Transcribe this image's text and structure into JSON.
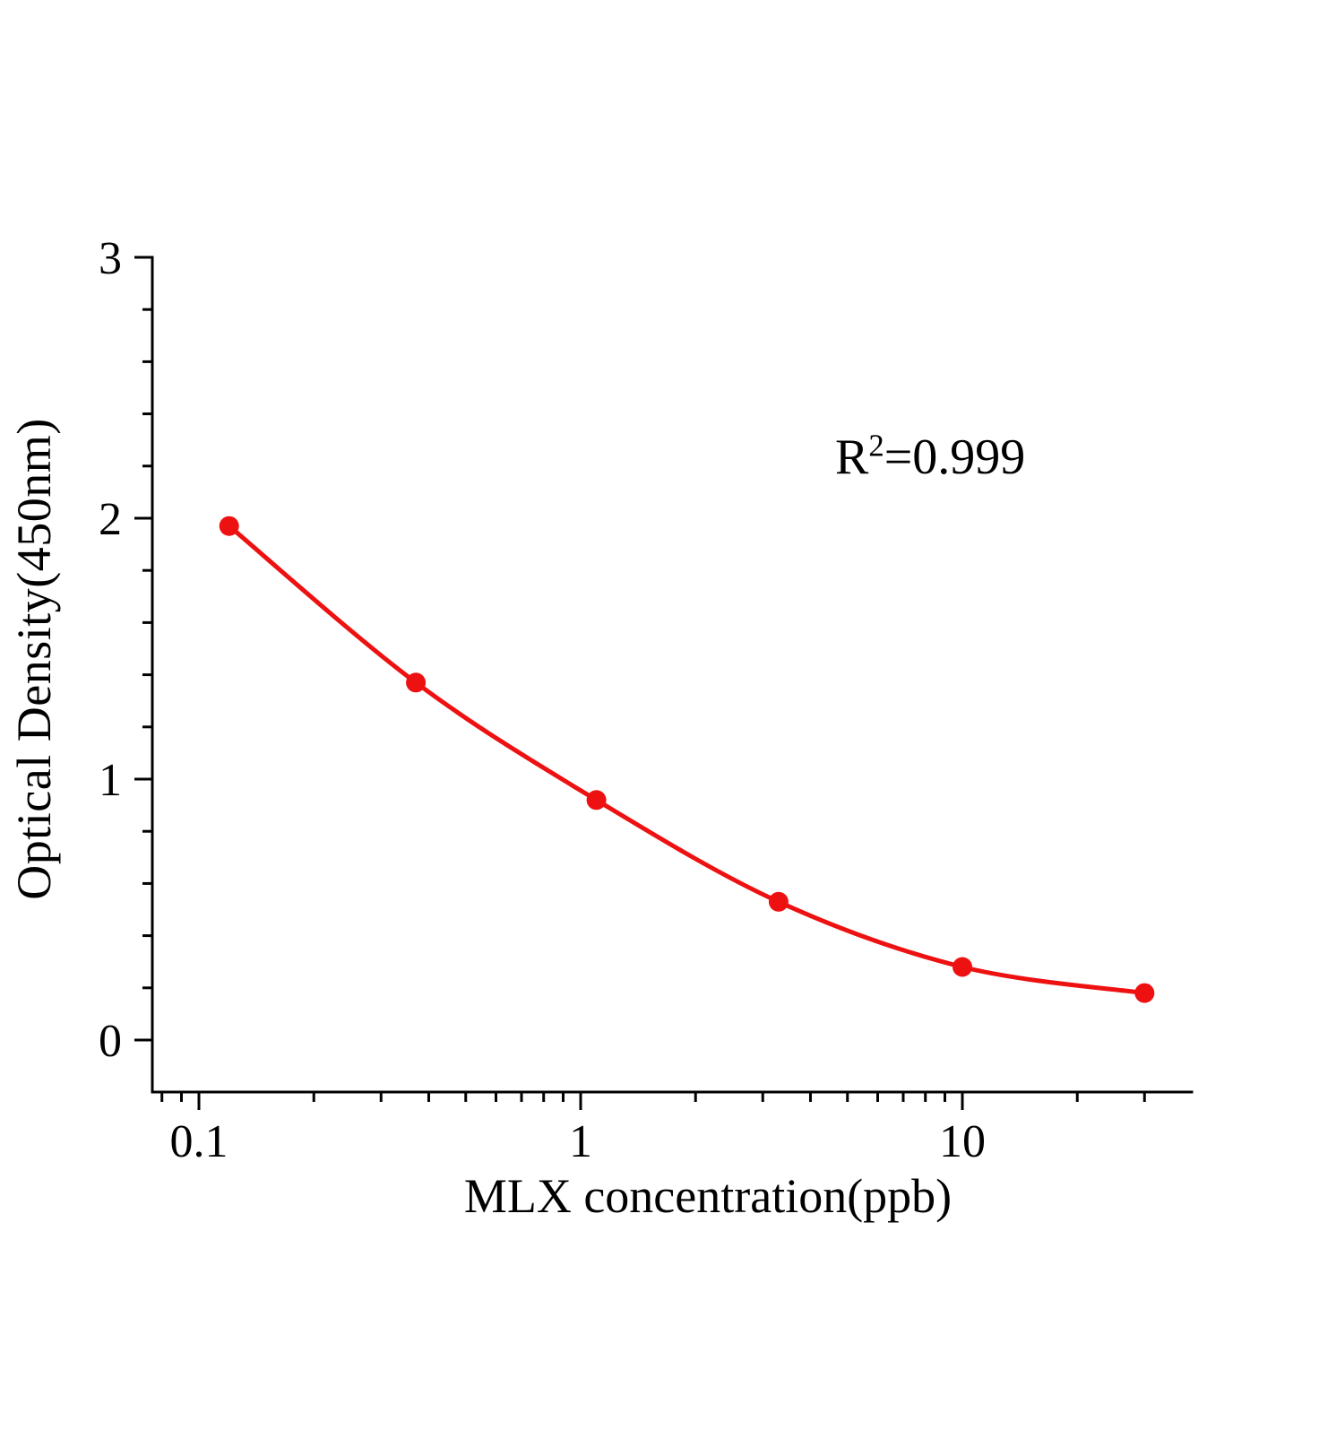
{
  "page": {
    "background_color": "#ffffff"
  },
  "chart_data": {
    "type": "scatter",
    "title": "",
    "xlabel": "MLX concentration(ppb)",
    "ylabel": "Optical Density(450nm)",
    "annotation": {
      "prefix": "R",
      "sup": "2",
      "rest": "=0.999"
    },
    "x_scale": "log",
    "y_scale": "linear",
    "points": [
      {
        "x": 0.12,
        "y": 1.97
      },
      {
        "x": 0.37,
        "y": 1.37
      },
      {
        "x": 1.1,
        "y": 0.92
      },
      {
        "x": 3.3,
        "y": 0.53
      },
      {
        "x": 10,
        "y": 0.28
      },
      {
        "x": 30,
        "y": 0.18
      }
    ],
    "x_major_ticks": [
      {
        "value": 0.1,
        "label": "0.1"
      },
      {
        "value": 1,
        "label": "1"
      },
      {
        "value": 10,
        "label": "10"
      }
    ],
    "y_major_ticks": [
      {
        "value": 0,
        "label": "0"
      },
      {
        "value": 1,
        "label": "1"
      },
      {
        "value": 2,
        "label": "2"
      },
      {
        "value": 3,
        "label": "3"
      }
    ],
    "y_minor_step": 0.2,
    "xlim": [
      0.075,
      40
    ],
    "ylim": [
      -0.2,
      3
    ],
    "grid": false,
    "legend": "none",
    "line_color": "#ee1111",
    "marker_color": "#ee1111",
    "axis_color": "#000000"
  }
}
